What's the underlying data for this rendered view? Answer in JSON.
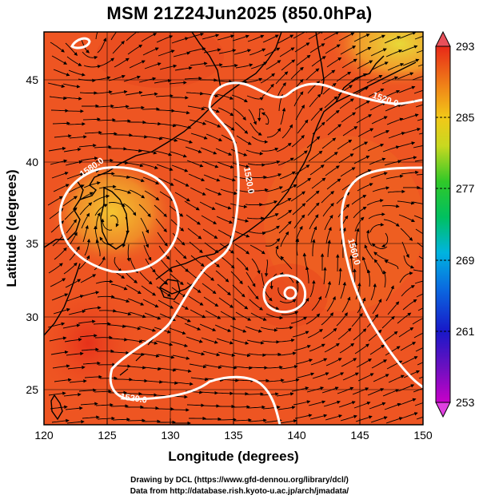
{
  "title": "MSM 21Z24Jun2025 (850.0hPa)",
  "x_axis": {
    "label": "Longitude (degrees)",
    "ticks": [
      "120",
      "125",
      "130",
      "135",
      "140",
      "145",
      "150"
    ],
    "range": [
      120,
      150
    ]
  },
  "y_axis": {
    "label": "Latitude (degrees)",
    "ticks": [
      "25",
      "30",
      "35",
      "40",
      "45"
    ],
    "range": [
      22.4,
      47.6
    ]
  },
  "colorbar": {
    "ticks": [
      "293",
      "285",
      "277",
      "269",
      "261",
      "253"
    ],
    "range": [
      253,
      293
    ]
  },
  "contour_labels": [
    "1580.0",
    "1520.0",
    "1560.0",
    "1520.0",
    "1520.0"
  ],
  "credits": {
    "line1": "Drawing by DCL (https://www.gfd-dennou.org/library/dcl/)",
    "line2": "Data from http://database.rish.kyoto-u.ac.jp/arch/jmadata/"
  }
}
